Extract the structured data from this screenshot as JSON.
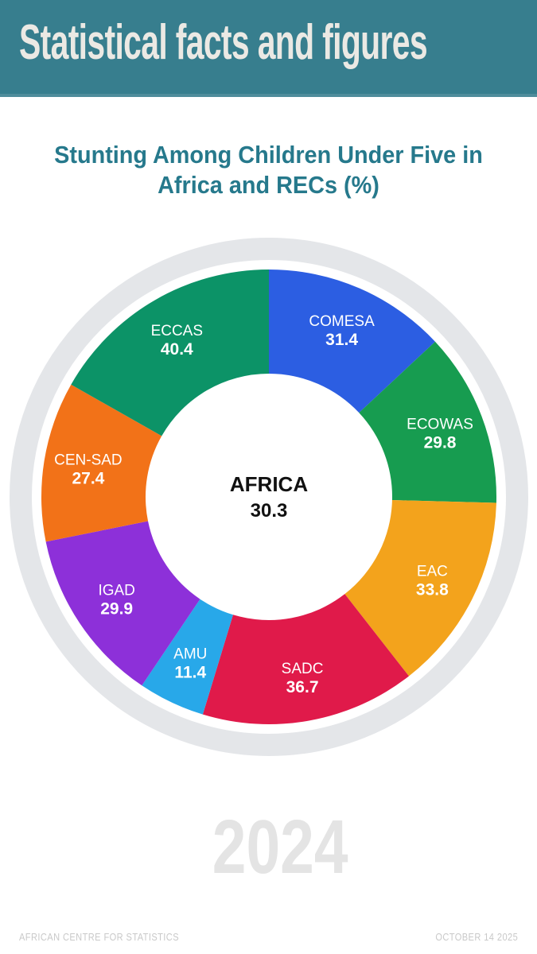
{
  "header": {
    "title": "Statistical facts and figures",
    "bg_color": "#377e8e",
    "text_color": "#ebe9e4"
  },
  "chart_title": {
    "line1": "Stunting Among Children Under Five in",
    "line2": "Africa and RECs (%)",
    "color": "#26798c"
  },
  "chart_data": {
    "type": "pie",
    "subtype": "donut",
    "title": "Stunting Among Children Under Five in Africa and RECs (%)",
    "unit": "%",
    "start_angle_deg": 0,
    "direction": "clockwise",
    "legend_position": "none",
    "labels_on_slices": true,
    "center": {
      "label": "AFRICA",
      "value": 30.3
    },
    "segments": [
      {
        "name": "COMESA",
        "value": 31.4,
        "color": "#2c5ee2"
      },
      {
        "name": "ECOWAS",
        "value": 29.8,
        "color": "#179c50"
      },
      {
        "name": "EAC",
        "value": 33.8,
        "color": "#f3a31c"
      },
      {
        "name": "SADC",
        "value": 36.7,
        "color": "#e01a4a"
      },
      {
        "name": "AMU",
        "value": 11.4,
        "color": "#28a8e9"
      },
      {
        "name": "IGAD",
        "value": 29.9,
        "color": "#8d30d9"
      },
      {
        "name": "CEN-SAD",
        "value": 27.4,
        "color": "#f27218"
      },
      {
        "name": "ECCAS",
        "value": 40.4,
        "color": "#0c9367"
      }
    ],
    "outer_ring_color": "#e4e6e9",
    "slice_label_color": "#ffffff",
    "center_label_color": "#111111"
  },
  "year_watermark": "2024",
  "footer": {
    "left": "AFRICAN CENTRE FOR STATISTICS",
    "right": "OCTOBER 14 2025",
    "text_color": "#c9c9c9"
  }
}
